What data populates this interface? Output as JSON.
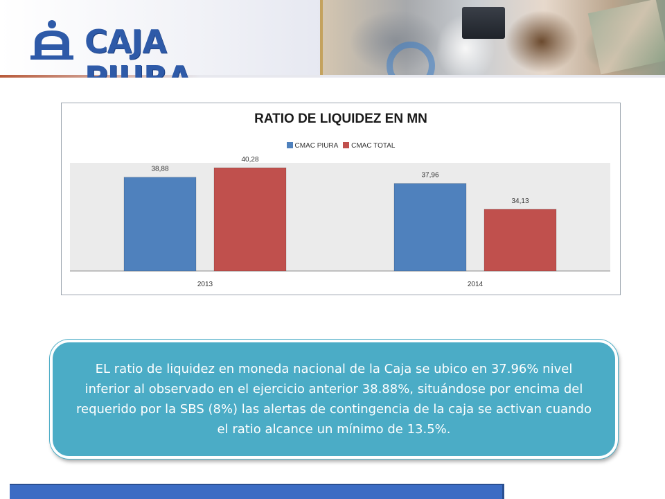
{
  "header": {
    "logo_text": "CAJA PIURA",
    "brand_color": "#2e5aa8"
  },
  "chart_data": {
    "type": "bar",
    "title": "RATIO DE LIQUIDEZ EN MN",
    "categories": [
      "2013",
      "2014"
    ],
    "series": [
      {
        "name": "CMAC PIURA",
        "values": [
          38.88,
          37.96
        ],
        "labels": [
          "38,88",
          "37,96"
        ],
        "color": "#4f81bd"
      },
      {
        "name": "CMAC TOTAL",
        "values": [
          40.28,
          34.13
        ],
        "labels": [
          "40,28",
          "34,13"
        ],
        "color": "#c0504d"
      }
    ],
    "legend_position": "top",
    "grid": false,
    "plot_background": "#ebebeb",
    "xlabel": "",
    "ylabel": "",
    "ylim": [
      25,
      41
    ]
  },
  "callout": {
    "text": "EL ratio de liquidez en moneda nacional de la Caja se ubico en 37.96% nivel inferior al observado en el ejercicio anterior  38.88%, situándose por encima del requerido por la SBS (8%) las alertas de contingencia de la caja se activan cuando el ratio alcance un mínimo de 13.5%.",
    "color": "#4bacc6"
  }
}
